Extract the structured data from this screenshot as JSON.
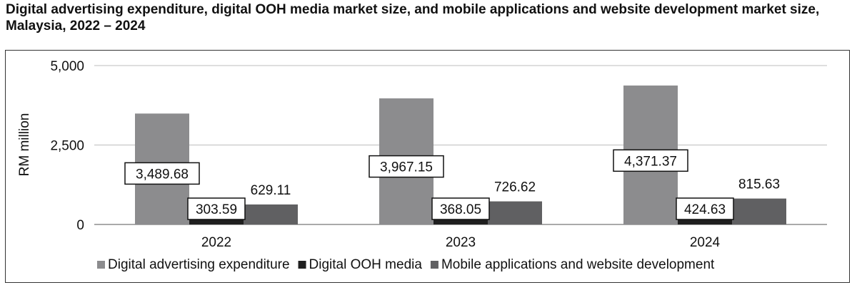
{
  "title": "Digital advertising expenditure, digital OOH media market size, and mobile applications and website development market size, Malaysia, 2022 – 2024",
  "chart_data": {
    "type": "bar",
    "title": "Digital advertising expenditure, digital OOH media market size, and mobile applications and website development market size, Malaysia, 2022 – 2024",
    "xlabel": "",
    "ylabel": "RM million",
    "ylim": [
      0,
      5000
    ],
    "yticks": [
      0,
      2500,
      5000
    ],
    "ytick_labels": [
      "0",
      "2,500",
      "5,000"
    ],
    "grid": true,
    "legend_position": "bottom",
    "categories": [
      "2022",
      "2023",
      "2024"
    ],
    "series": [
      {
        "name": "Digital advertising expenditure",
        "color": "#8c8c8e",
        "values": [
          3489.68,
          3967.15,
          4371.37
        ],
        "labels": [
          "3,489.68",
          "3,967.15",
          "4,371.37"
        ]
      },
      {
        "name": "Digital OOH media",
        "color": "#1f1f1f",
        "values": [
          303.59,
          368.05,
          424.63
        ],
        "labels": [
          "303.59",
          "368.05",
          "424.63"
        ]
      },
      {
        "name": "Mobile applications and website development",
        "color": "#606062",
        "values": [
          629.11,
          726.62,
          815.63
        ],
        "labels": [
          "629.11",
          "726.62",
          "815.63"
        ]
      }
    ]
  }
}
